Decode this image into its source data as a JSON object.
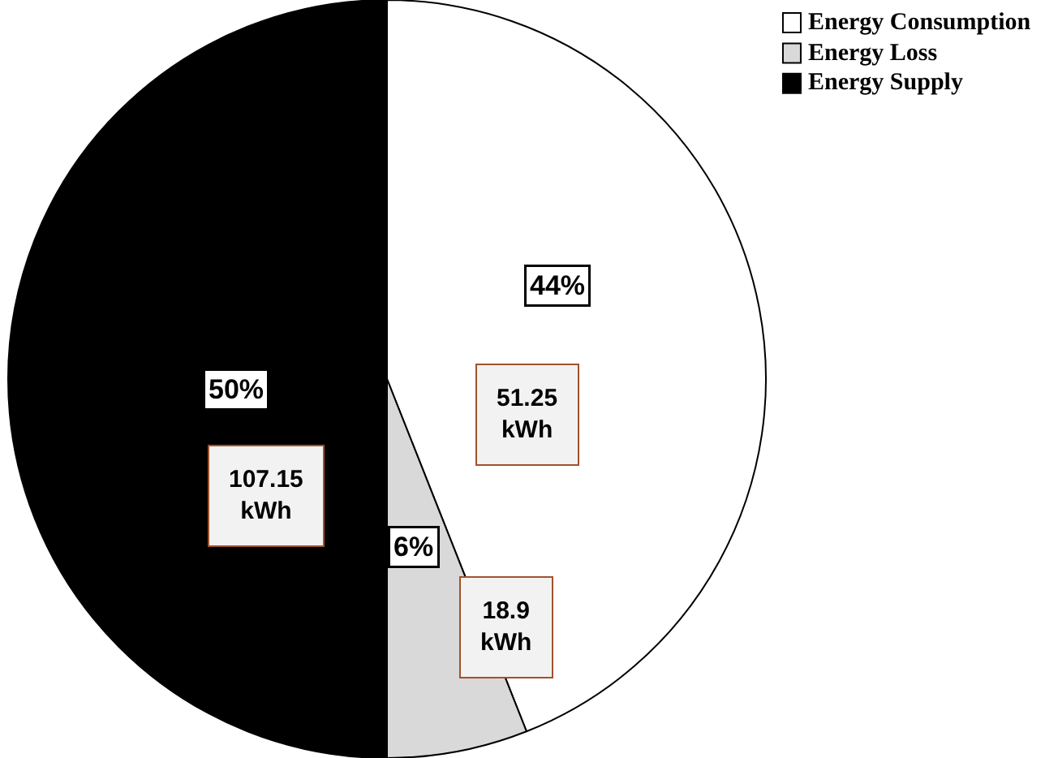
{
  "chart_data": {
    "type": "pie",
    "categories": [
      "Energy Consumption",
      "Energy Loss",
      "Energy Supply"
    ],
    "values": [
      44,
      6,
      50
    ],
    "colors": [
      "#ffffff",
      "#d9d9d9",
      "#000000"
    ],
    "value_labels": [
      "44%",
      "6%",
      "50%"
    ],
    "annotations": [
      "51.25\nkWh",
      "18.9\nkWh",
      "107.15\nkWh"
    ],
    "legend": "top right"
  }
}
